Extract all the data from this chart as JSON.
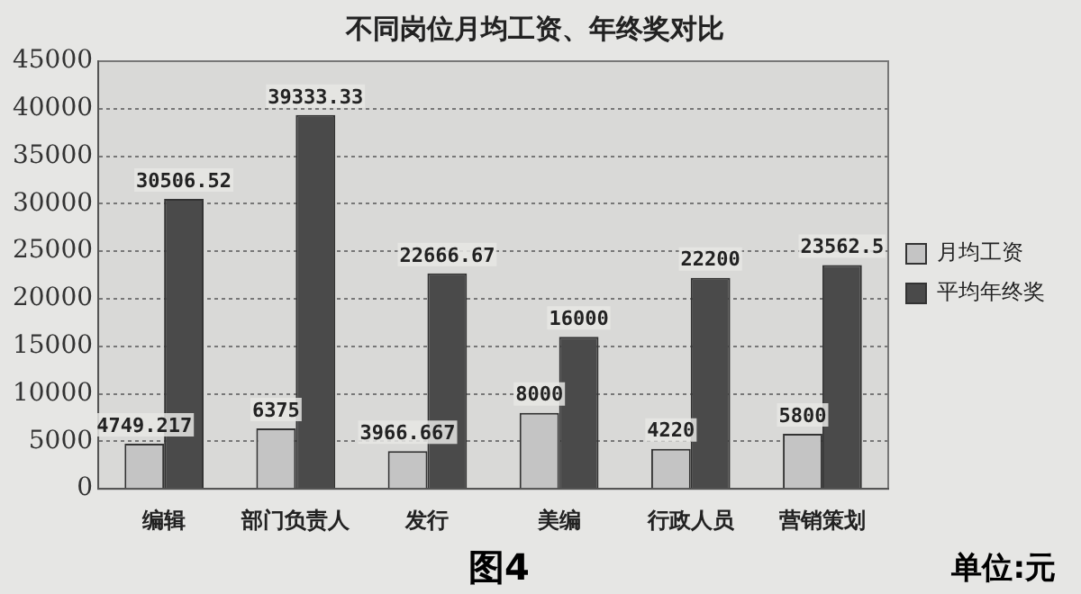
{
  "chart_data": {
    "type": "bar",
    "title": "不同岗位月均工资、年终奖对比",
    "categories": [
      "编辑",
      "部门负责人",
      "发行",
      "美编",
      "行政人员",
      "营销策划"
    ],
    "series": [
      {
        "name": "月均工资",
        "color": "#c4c4c4",
        "values": [
          4749.217,
          6375,
          3966.667,
          8000,
          4220,
          5800
        ]
      },
      {
        "name": "平均年终奖",
        "color": "#4a4a4a",
        "values": [
          30506.52,
          39333.33,
          22666.67,
          16000,
          22200,
          23562.5
        ]
      }
    ],
    "ylim": [
      0,
      45000
    ],
    "yticks": [
      0,
      5000,
      10000,
      15000,
      20000,
      25000,
      30000,
      35000,
      40000,
      45000
    ],
    "grid": "y",
    "legend": "right",
    "data_labels": true,
    "annotations": [
      "图4",
      "单位:元"
    ]
  }
}
